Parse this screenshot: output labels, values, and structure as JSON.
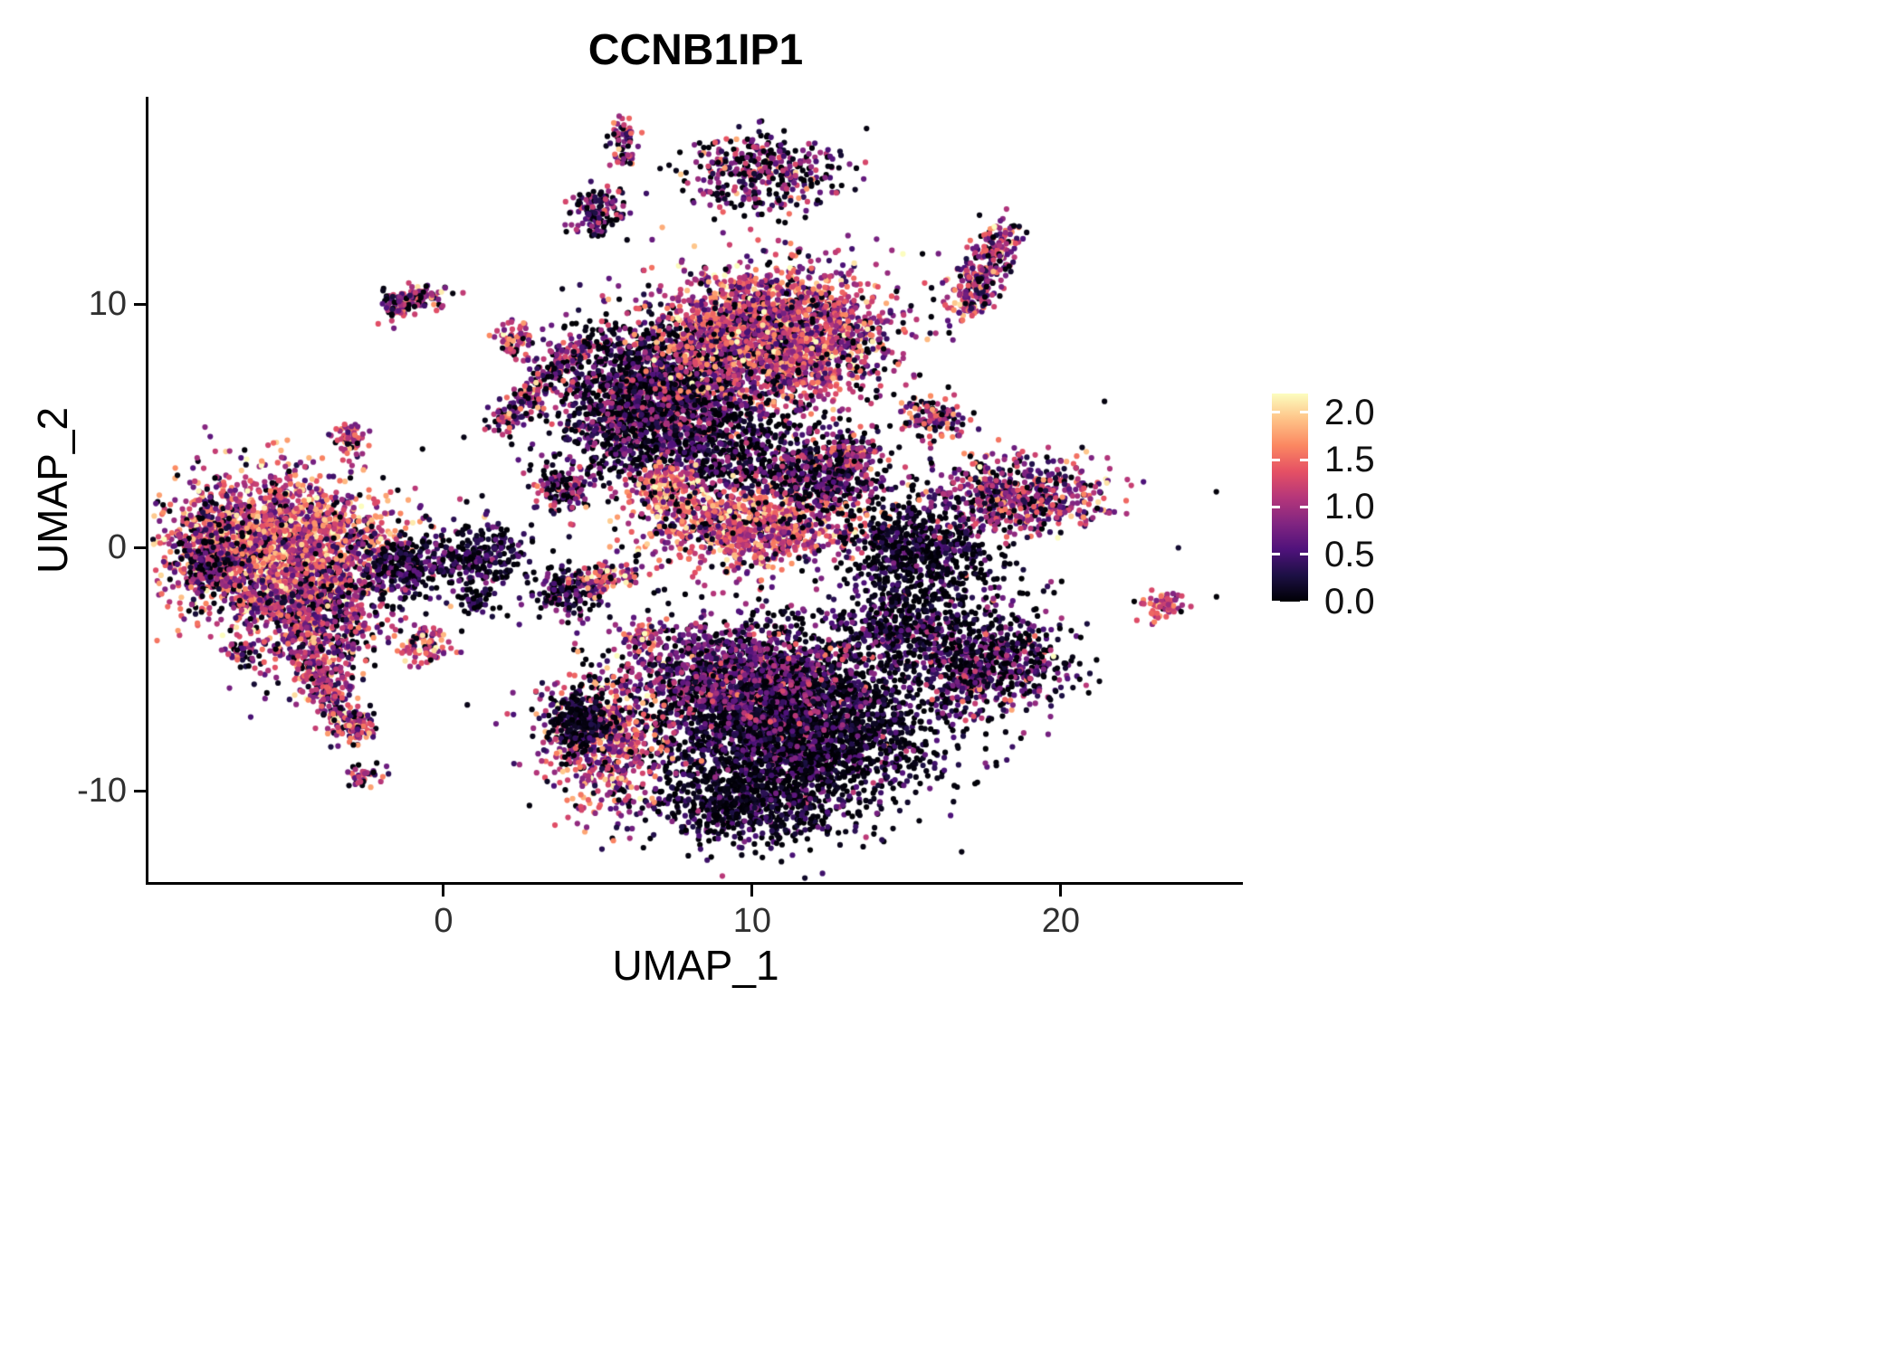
{
  "title": "CCNB1IP1",
  "chart_data": {
    "type": "scatter",
    "subtype": "umap-feature-plot",
    "title": "CCNB1IP1",
    "xlabel": "UMAP_1",
    "ylabel": "UMAP_2",
    "xlim": [
      -9.53,
      25.87
    ],
    "ylim": [
      -13.79,
      18.48
    ],
    "grid": false,
    "background": "#ffffff",
    "x_ticks": [
      {
        "value": 0,
        "label": "0"
      },
      {
        "value": 10,
        "label": "10"
      },
      {
        "value": 20,
        "label": "20"
      }
    ],
    "y_ticks": [
      {
        "value": 10,
        "label": "10"
      },
      {
        "value": 0,
        "label": "0"
      },
      {
        "value": -10,
        "label": "-10"
      }
    ],
    "legend": {
      "position": "right",
      "max": 2.2,
      "ticks": [
        {
          "value": 0.0,
          "label": "0.0"
        },
        {
          "value": 0.5,
          "label": "0.5"
        },
        {
          "value": 1.0,
          "label": "1.0"
        },
        {
          "value": 1.5,
          "label": "1.5"
        },
        {
          "value": 2.0,
          "label": "2.0"
        }
      ]
    },
    "colormap": {
      "name": "magma",
      "stops": [
        "#000004",
        "#1c1044",
        "#4f127b",
        "#812581",
        "#b5367a",
        "#e55064",
        "#fb8761",
        "#fec287",
        "#fcfdbf"
      ]
    },
    "point_radius": 3.1,
    "clusters": [
      {
        "name": "left-main",
        "cx": -5.4,
        "cy": 0.1,
        "sx": 1.75,
        "sy": 1.45,
        "n": 2400,
        "mean": 1.25,
        "sd": 0.5,
        "zero": 0.06
      },
      {
        "name": "left-dark-rim",
        "cx": -7.5,
        "cy": -0.6,
        "sx": 0.6,
        "sy": 1.1,
        "n": 220,
        "mean": 0.7,
        "sd": 0.45,
        "zero": 0.25
      },
      {
        "name": "left-lower",
        "cx": -4.3,
        "cy": -3.0,
        "sx": 1.15,
        "sy": 1.25,
        "n": 750,
        "mean": 0.95,
        "sd": 0.5,
        "zero": 0.12
      },
      {
        "name": "left-tail",
        "cx": -4.3,
        "cy": -4.6,
        "x2": -2.9,
        "y2": -7.7,
        "w": 0.35,
        "n": 260,
        "mean": 1.05,
        "sd": 0.5,
        "zero": 0.1
      },
      {
        "name": "left-east",
        "cx": -1.3,
        "cy": -0.8,
        "sx": 0.9,
        "sy": 0.8,
        "n": 320,
        "mean": 0.45,
        "sd": 0.35,
        "zero": 0.3
      },
      {
        "name": "mid-left-clump",
        "cx": 1.2,
        "cy": -0.4,
        "sx": 0.7,
        "sy": 0.65,
        "n": 240,
        "mean": 0.35,
        "sd": 0.3,
        "zero": 0.4
      },
      {
        "name": "diag-streak",
        "cx": 1.7,
        "cy": 4.9,
        "x2": 4.4,
        "y2": 8.4,
        "w": 0.3,
        "n": 230,
        "mean": 0.9,
        "sd": 0.5,
        "zero": 0.15
      },
      {
        "name": "tiny-upper-left",
        "cx": -3.1,
        "cy": 4.4,
        "sx": 0.3,
        "sy": 0.4,
        "n": 60,
        "mean": 1.15,
        "sd": 0.4,
        "zero": 0.1
      },
      {
        "name": "tiny-top-left-a",
        "cx": -0.9,
        "cy": 10.2,
        "sx": 0.45,
        "sy": 0.35,
        "n": 95,
        "mean": 1.0,
        "sd": 0.5,
        "zero": 0.15
      },
      {
        "name": "tiny-top-left-b",
        "cx": -1.7,
        "cy": 9.9,
        "sx": 0.25,
        "sy": 0.3,
        "n": 40,
        "mean": 0.8,
        "sd": 0.4,
        "zero": 0.2
      },
      {
        "name": "tiny-8-4",
        "cx": 2.3,
        "cy": 8.4,
        "sx": 0.35,
        "sy": 0.4,
        "n": 70,
        "mean": 1.2,
        "sd": 0.45,
        "zero": 0.1
      },
      {
        "name": "tiny-minus4",
        "cx": -0.6,
        "cy": -3.9,
        "sx": 0.4,
        "sy": 0.45,
        "n": 95,
        "mean": 1.25,
        "sd": 0.45,
        "zero": 0.1
      },
      {
        "name": "tiny-left-low-a",
        "cx": -2.7,
        "cy": -7.4,
        "sx": 0.3,
        "sy": 0.3,
        "n": 50,
        "mean": 1.05,
        "sd": 0.4,
        "zero": 0.15
      },
      {
        "name": "tiny-left-low-b",
        "cx": -2.6,
        "cy": -9.4,
        "sx": 0.3,
        "sy": 0.25,
        "n": 35,
        "mean": 1.1,
        "sd": 0.45,
        "zero": 0.15
      },
      {
        "name": "micro-left",
        "cx": -6.7,
        "cy": -4.2,
        "sx": 0.25,
        "sy": 0.2,
        "n": 28,
        "mean": 1.0,
        "sd": 0.4,
        "zero": 0.15
      },
      {
        "name": "top-tiny-a",
        "cx": 5.8,
        "cy": 16.9,
        "sx": 0.25,
        "sy": 0.3,
        "n": 45,
        "mean": 0.95,
        "sd": 0.5,
        "zero": 0.2
      },
      {
        "name": "top-tiny-b",
        "cx": 5.8,
        "cy": 16.0,
        "sx": 0.18,
        "sy": 0.18,
        "n": 22,
        "mean": 1.2,
        "sd": 0.4,
        "zero": 0.1
      },
      {
        "name": "top-mid",
        "cx": 5.0,
        "cy": 13.8,
        "sx": 0.45,
        "sy": 0.5,
        "n": 130,
        "mean": 0.6,
        "sd": 0.45,
        "zero": 0.3
      },
      {
        "name": "top-right-hook",
        "cx": 10.3,
        "cy": 15.4,
        "sx": 1.25,
        "sy": 0.85,
        "n": 380,
        "mean": 0.7,
        "sd": 0.55,
        "zero": 0.3
      },
      {
        "name": "right-diagonal",
        "cx": 16.9,
        "cy": 9.8,
        "x2": 18.1,
        "y2": 12.9,
        "w": 0.4,
        "n": 300,
        "mean": 1.0,
        "sd": 0.5,
        "zero": 0.12
      },
      {
        "name": "central-left-dark",
        "cx": 6.9,
        "cy": 6.2,
        "sx": 1.55,
        "sy": 1.55,
        "n": 1900,
        "mean": 0.55,
        "sd": 0.45,
        "zero": 0.33
      },
      {
        "name": "central-main-bright",
        "cx": 10.7,
        "cy": 8.7,
        "sx": 1.75,
        "sy": 1.45,
        "n": 2500,
        "mean": 1.15,
        "sd": 0.5,
        "zero": 0.08
      },
      {
        "name": "central-below",
        "cx": 9.0,
        "cy": 3.9,
        "sx": 2.0,
        "sy": 1.2,
        "n": 650,
        "mean": 0.5,
        "sd": 0.4,
        "zero": 0.38
      },
      {
        "name": "hot-clump",
        "cx": 7.3,
        "cy": 2.4,
        "sx": 0.5,
        "sy": 0.55,
        "n": 210,
        "mean": 1.45,
        "sd": 0.4,
        "zero": 0.05
      },
      {
        "name": "bright-band",
        "cx": 9.9,
        "cy": 0.9,
        "sx": 1.6,
        "sy": 0.85,
        "n": 950,
        "mean": 1.25,
        "sd": 0.45,
        "zero": 0.06
      },
      {
        "name": "mid-right-clump",
        "cx": 12.3,
        "cy": 2.9,
        "sx": 1.0,
        "sy": 0.9,
        "n": 450,
        "mean": 0.6,
        "sd": 0.45,
        "zero": 0.3
      },
      {
        "name": "small-13-4",
        "cx": 13.2,
        "cy": 3.8,
        "sx": 0.4,
        "sy": 0.4,
        "n": 90,
        "mean": 0.95,
        "sd": 0.4,
        "zero": 0.15
      },
      {
        "name": "small-16-5",
        "cx": 15.8,
        "cy": 5.3,
        "sx": 0.5,
        "sy": 0.4,
        "n": 120,
        "mean": 0.85,
        "sd": 0.45,
        "zero": 0.2
      },
      {
        "name": "right-dark",
        "cx": 15.3,
        "cy": -0.1,
        "sx": 1.15,
        "sy": 1.05,
        "n": 600,
        "mean": 0.3,
        "sd": 0.3,
        "zero": 0.5
      },
      {
        "name": "right-magenta",
        "cx": 18.7,
        "cy": 2.1,
        "sx": 1.4,
        "sy": 0.8,
        "n": 600,
        "mean": 0.9,
        "sd": 0.5,
        "zero": 0.15
      },
      {
        "name": "far-right-tiny",
        "cx": 23.3,
        "cy": -2.4,
        "sx": 0.4,
        "sy": 0.3,
        "n": 70,
        "mean": 1.25,
        "sd": 0.4,
        "zero": 0.08
      },
      {
        "name": "bottom-main-dark",
        "cx": 11.3,
        "cy": -7.3,
        "sx": 2.3,
        "sy": 1.8,
        "n": 3100,
        "mean": 0.35,
        "sd": 0.35,
        "zero": 0.45
      },
      {
        "name": "bottom-tip",
        "cx": 9.6,
        "cy": -10.6,
        "sx": 1.4,
        "sy": 0.8,
        "n": 550,
        "mean": 0.3,
        "sd": 0.3,
        "zero": 0.5
      },
      {
        "name": "bottom-purple-band",
        "cx": 9.3,
        "cy": -5.2,
        "sx": 1.9,
        "sy": 1.1,
        "n": 950,
        "mean": 0.7,
        "sd": 0.4,
        "zero": 0.18
      },
      {
        "name": "bottom-left-bright",
        "cx": 5.2,
        "cy": -7.9,
        "sx": 1.0,
        "sy": 1.4,
        "n": 620,
        "mean": 1.15,
        "sd": 0.5,
        "zero": 0.1
      },
      {
        "name": "bottom-left-dark-cap",
        "cx": 4.4,
        "cy": -7.2,
        "sx": 0.5,
        "sy": 0.6,
        "n": 260,
        "mean": 0.25,
        "sd": 0.25,
        "zero": 0.5
      },
      {
        "name": "bottom-right-lobe",
        "cx": 17.6,
        "cy": -4.7,
        "sx": 1.3,
        "sy": 1.1,
        "n": 750,
        "mean": 0.55,
        "sd": 0.45,
        "zero": 0.32
      },
      {
        "name": "bottom-connector",
        "cx": 14.9,
        "cy": -3.1,
        "sx": 1.0,
        "sy": 0.8,
        "n": 320,
        "mean": 0.4,
        "sd": 0.35,
        "zero": 0.42
      },
      {
        "name": "tiny-6-minus4",
        "cx": 6.5,
        "cy": -3.7,
        "sx": 0.28,
        "sy": 0.3,
        "n": 60,
        "mean": 1.2,
        "sd": 0.4,
        "zero": 0.1
      },
      {
        "name": "small-4-minus2",
        "cx": 4.0,
        "cy": -1.9,
        "sx": 0.6,
        "sy": 0.5,
        "n": 160,
        "mean": 0.5,
        "sd": 0.4,
        "zero": 0.35
      },
      {
        "name": "small-5-minus1-bright",
        "cx": 5.4,
        "cy": -1.2,
        "sx": 0.5,
        "sy": 0.35,
        "n": 90,
        "mean": 1.3,
        "sd": 0.45,
        "zero": 0.1
      },
      {
        "name": "tiny-1-minus2",
        "cx": 1.0,
        "cy": -2.1,
        "sx": 0.3,
        "sy": 0.3,
        "n": 45,
        "mean": 0.3,
        "sd": 0.3,
        "zero": 0.45
      },
      {
        "name": "mid-small-2-4",
        "cx": 3.9,
        "cy": 2.4,
        "sx": 0.5,
        "sy": 0.5,
        "n": 130,
        "mean": 0.7,
        "sd": 0.5,
        "zero": 0.25
      },
      {
        "name": "stray-central",
        "cx": 9.5,
        "cy": 0.5,
        "sx": 4.5,
        "sy": 3.5,
        "n": 160,
        "mean": 0.35,
        "sd": 0.35,
        "zero": 0.5
      },
      {
        "name": "stray-right",
        "cx": 16.5,
        "cy": -1.5,
        "sx": 1.5,
        "sy": 1.5,
        "n": 80,
        "mean": 0.3,
        "sd": 0.3,
        "zero": 0.5
      }
    ]
  }
}
